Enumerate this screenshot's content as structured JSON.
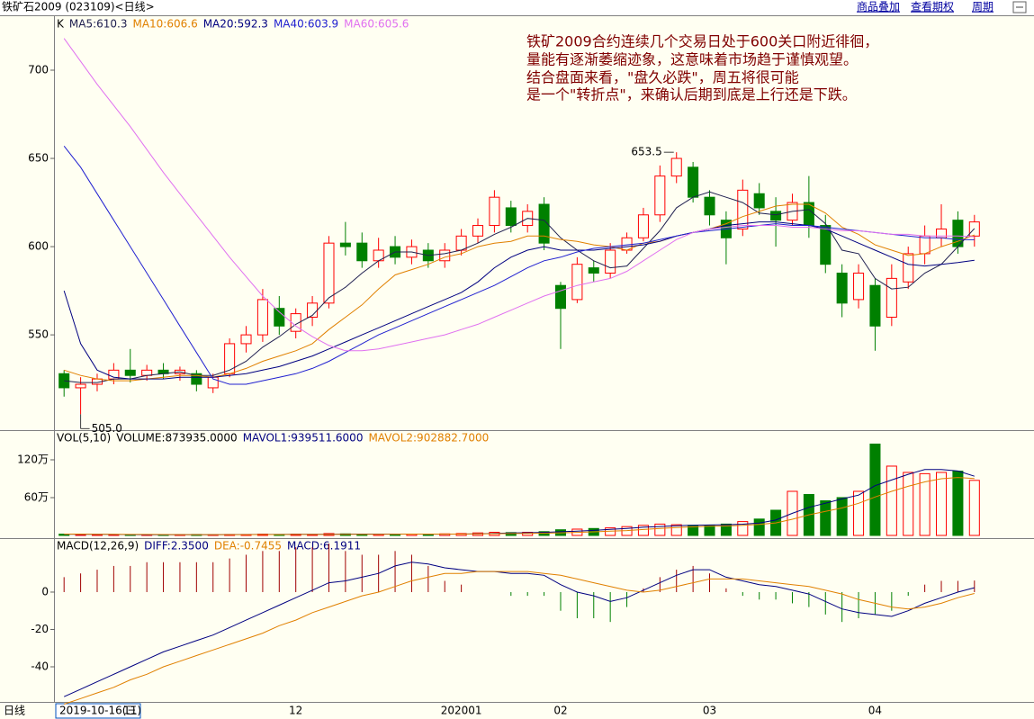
{
  "header": {
    "title": "铁矿石2009 (023109)<日线>",
    "links": [
      "商品叠加",
      "查看期权",
      "周期"
    ]
  },
  "chart_data": [
    {
      "type": "candlestick",
      "legend_label": "K",
      "categories": [
        null,
        null,
        null,
        null,
        "11",
        null,
        null,
        null,
        null,
        null,
        null,
        null,
        null,
        null,
        "12",
        null,
        null,
        null,
        null,
        null,
        null,
        null,
        null,
        null,
        "202001",
        null,
        null,
        null,
        null,
        null,
        "02",
        null,
        null,
        null,
        null,
        null,
        null,
        null,
        null,
        "03",
        null,
        null,
        null,
        null,
        null,
        null,
        null,
        null,
        null,
        "04",
        null,
        null,
        null,
        null,
        null,
        null
      ],
      "open": [
        528,
        520,
        522,
        525,
        530,
        527,
        530,
        528,
        528,
        520,
        528,
        545,
        550,
        565,
        552,
        560,
        568,
        602,
        602,
        592,
        600,
        594,
        598,
        592,
        598,
        606,
        612,
        622,
        612,
        624,
        578,
        570,
        588,
        585,
        598,
        605,
        618,
        640,
        645,
        628,
        615,
        610,
        630,
        620,
        615,
        625,
        612,
        585,
        570,
        578,
        560,
        580,
        596,
        605,
        615,
        606
      ],
      "close": [
        520,
        522,
        525,
        530,
        527,
        530,
        528,
        530,
        522,
        526,
        545,
        550,
        570,
        555,
        562,
        568,
        602,
        600,
        592,
        598,
        594,
        600,
        592,
        598,
        606,
        612,
        628,
        612,
        620,
        602,
        565,
        590,
        585,
        598,
        605,
        618,
        640,
        650,
        628,
        618,
        605,
        632,
        622,
        615,
        625,
        612,
        590,
        568,
        585,
        555,
        582,
        596,
        606,
        610,
        600,
        614
      ],
      "low": [
        515,
        505,
        518,
        522,
        523,
        524,
        525,
        524,
        518,
        517,
        526,
        540,
        546,
        550,
        548,
        555,
        565,
        595,
        588,
        588,
        590,
        590,
        588,
        588,
        595,
        602,
        608,
        608,
        608,
        598,
        542,
        568,
        580,
        582,
        596,
        603,
        614,
        636,
        625,
        612,
        590,
        606,
        618,
        600,
        612,
        605,
        585,
        560,
        565,
        541,
        555,
        576,
        590,
        600,
        596,
        600
      ],
      "high": [
        530,
        526,
        528,
        534,
        542,
        533,
        534,
        532,
        530,
        528,
        548,
        555,
        576,
        572,
        565,
        572,
        606,
        614,
        608,
        605,
        606,
        604,
        602,
        602,
        610,
        616,
        632,
        626,
        624,
        628,
        580,
        594,
        592,
        602,
        608,
        622,
        646,
        653.5,
        648,
        632,
        620,
        638,
        636,
        628,
        630,
        640,
        618,
        590,
        590,
        582,
        590,
        600,
        612,
        624,
        620,
        618
      ],
      "up_color": "#ff0000",
      "down_color": "#008000",
      "series": [
        {
          "name": "MA5:610.3",
          "color": "#202050",
          "values": [
            524,
            523,
            523,
            525,
            525,
            527,
            528,
            529,
            527,
            527,
            530,
            535,
            543,
            549,
            556,
            561,
            571,
            577,
            585,
            592,
            597,
            597,
            595,
            596,
            598,
            602,
            607,
            611,
            616,
            615,
            605,
            598,
            592,
            588,
            589,
            599,
            609,
            622,
            628,
            631,
            628,
            625,
            619,
            618,
            620,
            621,
            613,
            598,
            596,
            582,
            576,
            577,
            585,
            590,
            600,
            610.3
          ]
        },
        {
          "name": "MA10:606.6",
          "color": "#e08000",
          "values": [
            530,
            527,
            525,
            524,
            524,
            525,
            526,
            527,
            527,
            526,
            528,
            531,
            535,
            538,
            541,
            545,
            553,
            560,
            567,
            576,
            584,
            587,
            590,
            594,
            596,
            600,
            602,
            603,
            606,
            606,
            604,
            603,
            601,
            600,
            598,
            602,
            603,
            606,
            608,
            610,
            613,
            617,
            620,
            623,
            624,
            624,
            619,
            611,
            607,
            601,
            598,
            595,
            596,
            600,
            603,
            606.6
          ]
        },
        {
          "name": "MA20:592.3",
          "color": "#000080",
          "values": [
            575,
            545,
            530,
            526,
            525,
            525,
            525,
            526,
            526,
            526,
            527,
            528,
            530,
            532,
            535,
            538,
            542,
            546,
            550,
            554,
            558,
            562,
            566,
            570,
            574,
            580,
            588,
            594,
            598,
            600,
            598,
            598,
            598,
            599,
            600,
            601,
            603,
            606,
            608,
            610,
            612,
            613,
            614,
            614,
            613,
            612,
            610,
            606,
            602,
            598,
            594,
            590,
            589,
            590,
            591,
            592.3
          ]
        },
        {
          "name": "MA40:603.9",
          "color": "#2020d0",
          "values": [
            657,
            645,
            630,
            615,
            600,
            585,
            570,
            555,
            540,
            525,
            522,
            522,
            524,
            526,
            528,
            531,
            535,
            540,
            545,
            550,
            554,
            558,
            562,
            566,
            570,
            574,
            578,
            583,
            588,
            592,
            594,
            597,
            599,
            600,
            601,
            602,
            604,
            606,
            608,
            609,
            610,
            611,
            612,
            613,
            612,
            612,
            611,
            610,
            609,
            608,
            607,
            606,
            605,
            605,
            604,
            603.9
          ]
        },
        {
          "name": "MA60:605.6",
          "color": "#e070f0",
          "values": [
            718,
            705,
            692,
            680,
            668,
            655,
            642,
            630,
            618,
            606,
            594,
            583,
            572,
            563,
            555,
            549,
            544,
            541,
            541,
            542,
            544,
            546,
            548,
            550,
            553,
            556,
            560,
            564,
            568,
            572,
            575,
            578,
            580,
            582,
            586,
            592,
            598,
            604,
            608,
            610,
            611,
            612,
            612,
            612,
            611,
            611,
            610,
            609,
            609,
            608,
            607,
            607,
            606,
            606,
            606,
            605.6
          ]
        }
      ],
      "ylim": [
        496,
        730.6
      ],
      "yticks": [
        550,
        600,
        650,
        700
      ],
      "max_label": "653.5",
      "min_label": "505.0",
      "annotation": [
        "铁矿2009合约连续几个交易日处于600关口附近徘徊，",
        "量能有逐渐萎缩迹象，这意味着市场趋于谨慎观望。",
        "结合盘面来看，\"盘久必跌\"，周五将很可能",
        "是一个\"转折点\"，来确认后期到底是上行还是下跌。"
      ],
      "cursor_date": "2019-10-16(三)",
      "period_label": "日线"
    },
    {
      "type": "bar",
      "title": "VOL(5,10)",
      "values_name": "VOLUME:873935.0000",
      "values": [
        20000,
        15000,
        10000,
        12000,
        10000,
        12000,
        10000,
        12000,
        15000,
        12000,
        15000,
        15000,
        20000,
        15000,
        20000,
        15000,
        30000,
        25000,
        20000,
        20000,
        15000,
        20000,
        20000,
        25000,
        30000,
        40000,
        50000,
        45000,
        50000,
        60000,
        90000,
        100000,
        110000,
        120000,
        140000,
        160000,
        180000,
        170000,
        160000,
        160000,
        180000,
        220000,
        260000,
        400000,
        700000,
        650000,
        550000,
        600000,
        700000,
        1450000,
        1100000,
        1000000,
        980000,
        1000000,
        1020000,
        873935
      ],
      "series": [
        {
          "name": "MAVOL1:939511.6000",
          "color": "#000080",
          "values": [
            20000,
            19000,
            17000,
            15000,
            13000,
            12000,
            11000,
            11000,
            12000,
            12000,
            13000,
            14000,
            15000,
            15000,
            17000,
            17000,
            19000,
            21000,
            22000,
            22000,
            22000,
            22000,
            20000,
            20000,
            22000,
            26000,
            33000,
            38000,
            43000,
            49000,
            59000,
            69000,
            80000,
            96000,
            112000,
            130000,
            142000,
            154000,
            162000,
            166000,
            170000,
            178000,
            196000,
            244000,
            352000,
            446000,
            512000,
            580000,
            640000,
            790000,
            880000,
            970000,
            1046000,
            1046000,
            1022000,
            939511.6
          ]
        },
        {
          "name": "MAVOL2:902882.7000",
          "color": "#e08000",
          "values": [
            22000,
            21000,
            19000,
            17000,
            16000,
            15000,
            14000,
            13000,
            13000,
            13000,
            13000,
            13000,
            14000,
            14000,
            15000,
            15000,
            16000,
            17000,
            18000,
            19000,
            20000,
            21000,
            21000,
            21000,
            22000,
            24000,
            27000,
            30000,
            32000,
            35000,
            41000,
            48000,
            57000,
            67000,
            77000,
            94000,
            111000,
            125000,
            135000,
            146000,
            150000,
            160000,
            175000,
            199000,
            257000,
            327000,
            382000,
            435000,
            510000,
            610000,
            700000,
            780000,
            850000,
            900000,
            920000,
            902882.7
          ]
        }
      ],
      "ylim": [
        0,
        1671000
      ],
      "yticks": [
        {
          "value": 600000,
          "label": "60万"
        },
        {
          "value": 1200000,
          "label": "120万"
        }
      ]
    },
    {
      "type": "line",
      "title": "MACD(12,26,9)",
      "series": [
        {
          "name": "DIFF:2.3500",
          "color": "#000080",
          "values": [
            -56,
            -52,
            -48,
            -44,
            -40,
            -36,
            -32,
            -29,
            -26,
            -23,
            -19,
            -15,
            -11,
            -7,
            -3,
            1,
            5,
            6,
            8,
            10,
            14,
            16,
            15,
            13,
            12,
            11,
            11,
            10,
            10,
            9,
            4,
            0,
            -2,
            -5,
            -3,
            1,
            5,
            9,
            12,
            12,
            8,
            6,
            4,
            3,
            1,
            -1,
            -5,
            -9,
            -11,
            -12,
            -13,
            -10,
            -6,
            -3,
            0,
            2.35
          ]
        },
        {
          "name": "DEA:-0.7455",
          "color": "#e08000",
          "values": [
            -60,
            -57,
            -54,
            -51,
            -47,
            -44,
            -40,
            -37,
            -34,
            -31,
            -28,
            -25,
            -22,
            -18,
            -15,
            -11,
            -8,
            -5,
            -2,
            0,
            3,
            6,
            8,
            10,
            10,
            11,
            11,
            11,
            11,
            10,
            9,
            7,
            5,
            3,
            1,
            0,
            1,
            3,
            5,
            7,
            7,
            7,
            6,
            5,
            4,
            3,
            1,
            -1,
            -4,
            -6,
            -8,
            -9,
            -8,
            -6,
            -3,
            -0.7455
          ]
        }
      ],
      "bars": {
        "name": "MACD:6.1911",
        "values": [
          8,
          10,
          12,
          14,
          14,
          16,
          16,
          16,
          16,
          16,
          18,
          20,
          22,
          22,
          24,
          24,
          26,
          22,
          20,
          20,
          22,
          20,
          14,
          6,
          4,
          0,
          0,
          -2,
          -2,
          -2,
          -10,
          -14,
          -14,
          -16,
          -8,
          2,
          8,
          12,
          14,
          10,
          2,
          -2,
          -4,
          -4,
          -6,
          -8,
          -12,
          -16,
          -14,
          -12,
          -10,
          -2,
          4,
          6,
          6,
          6.1911
        ],
        "up_color": "#a00000",
        "down_color": "#008000"
      },
      "ylim": [
        -58.8,
        28.9
      ],
      "yticks": [
        -40,
        -20,
        0
      ]
    }
  ]
}
